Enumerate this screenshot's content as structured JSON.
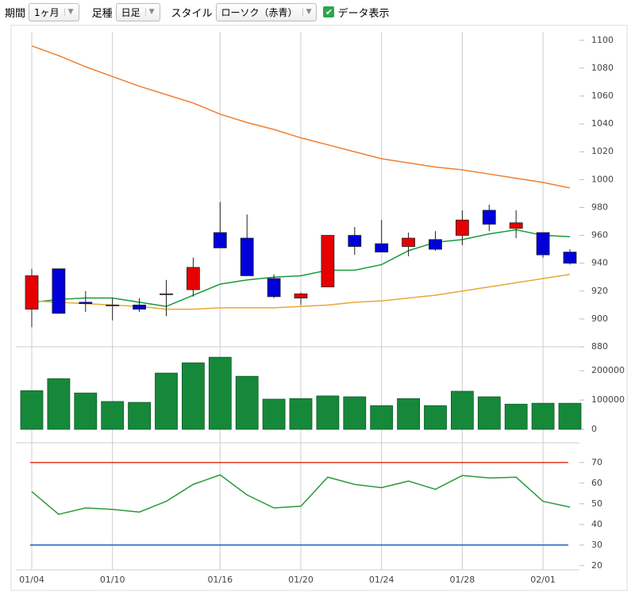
{
  "toolbar": {
    "period_label": "期間",
    "period_value": "1ヶ月",
    "kind_label": "足種",
    "kind_value": "日足",
    "style_label": "スタイル",
    "style_value": "ローソク（赤青）",
    "show_data": "データ表示"
  },
  "chart_data": [
    {
      "type": "candlestick",
      "categories": [
        "01/04",
        null,
        null,
        "01/10",
        null,
        null,
        null,
        "01/16",
        null,
        null,
        "01/20",
        null,
        null,
        "01/24",
        null,
        null,
        "01/28",
        null,
        null,
        "02/01",
        null
      ],
      "open": [
        907,
        936,
        912,
        910,
        910,
        918,
        921,
        962,
        958,
        929,
        915,
        923,
        960,
        954,
        952,
        957,
        960,
        978,
        965,
        962,
        948
      ],
      "high": [
        936,
        936,
        920,
        915,
        915,
        928,
        944,
        984,
        975,
        932,
        919,
        960,
        966,
        971,
        962,
        963,
        978,
        982,
        978,
        962,
        950
      ],
      "low": [
        894,
        904,
        905,
        899,
        905,
        902,
        916,
        951,
        931,
        915,
        910,
        923,
        946,
        948,
        945,
        949,
        953,
        963,
        958,
        944,
        939
      ],
      "close": [
        931,
        904,
        911,
        910,
        907,
        918,
        937,
        951,
        931,
        916,
        918,
        960,
        952,
        948,
        958,
        950,
        971,
        968,
        969,
        946,
        940
      ],
      "up_color": "#e60000",
      "down_color": "#0000d8",
      "lines": [
        {
          "color": "#1a9a3a",
          "values": [
            912,
            914,
            915,
            915,
            912,
            909,
            917,
            925,
            928,
            930,
            931,
            935,
            935,
            939,
            949,
            955,
            957,
            961,
            964,
            960,
            959
          ]
        },
        {
          "color": "#e8a838",
          "values": [
            913,
            912,
            911,
            910,
            909,
            907,
            907,
            908,
            908,
            908,
            909,
            910,
            912,
            913,
            915,
            917,
            920,
            923,
            926,
            929,
            932
          ]
        },
        {
          "color": "#f07f2f",
          "values": [
            1096,
            1089,
            1081,
            1074,
            1067,
            1061,
            1055,
            1047,
            1041,
            1036,
            1030,
            1025,
            1020,
            1015,
            1012,
            1009,
            1007,
            1004,
            1001,
            998,
            994
          ]
        }
      ],
      "ylim": [
        880,
        1105
      ],
      "yticks": [
        880,
        900,
        920,
        940,
        960,
        980,
        1000,
        1020,
        1040,
        1060,
        1080,
        1100
      ],
      "grid": true
    },
    {
      "type": "bar",
      "color": "#16883a",
      "values": [
        132000,
        173000,
        124000,
        95000,
        92000,
        192000,
        227000,
        246000,
        181000,
        103000,
        105000,
        114000,
        111000,
        81000,
        105000,
        81000,
        130000,
        111000,
        86000,
        89000,
        89000
      ],
      "ylim": [
        0,
        260000
      ],
      "yticks": [
        0,
        100000,
        200000
      ]
    },
    {
      "type": "line",
      "values": [
        55.9,
        44.9,
        48,
        47.3,
        46,
        51.2,
        59.4,
        64,
        54.3,
        48,
        48.8,
        62.9,
        59.4,
        57.8,
        61,
        57,
        63.7,
        62.5,
        62.9,
        51.2,
        48.4
      ],
      "color": "#2a9a3a",
      "levels": [
        {
          "value": 70,
          "color": "#e03a20"
        },
        {
          "value": 30,
          "color": "#2060c0"
        }
      ],
      "ylim": [
        18,
        78
      ],
      "yticks": [
        20,
        30,
        40,
        50,
        60,
        70
      ]
    }
  ]
}
